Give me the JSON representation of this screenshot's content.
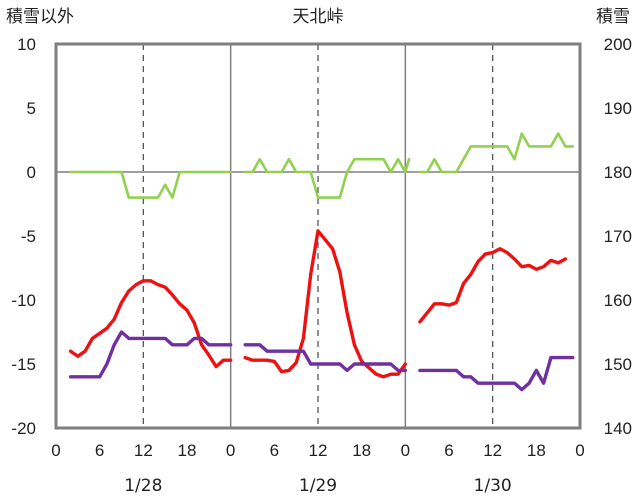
{
  "chart_data": {
    "type": "line",
    "title": "天北峠",
    "ylabel_left": "積雪以外",
    "ylabel_right": "積雪",
    "y_left": {
      "min": -20,
      "max": 10,
      "ticks": [
        10,
        5,
        0,
        -5,
        -10,
        -15,
        -20
      ]
    },
    "y_right": {
      "min": 140,
      "max": 200,
      "ticks": [
        200,
        190,
        180,
        170,
        160,
        150,
        140
      ]
    },
    "x": {
      "min": 0,
      "max": 72,
      "tick_hours": [
        0,
        6,
        12,
        18,
        24,
        30,
        36,
        42,
        48,
        54,
        60,
        66,
        72
      ],
      "tick_labels": [
        "0",
        "6",
        "12",
        "18",
        "0",
        "6",
        "12",
        "18",
        "0",
        "6",
        "12",
        "18",
        "0"
      ]
    },
    "dates": [
      "1/28",
      "1/29",
      "1/30"
    ],
    "grid": {
      "vertical_dashed_hours": [
        12,
        36,
        60
      ],
      "vertical_solid_hours": [
        24,
        48
      ],
      "horizontal_solid_values": [
        0
      ]
    },
    "series": [
      {
        "color": "#ee1111",
        "segments": [
          [
            [
              2,
              -14
            ],
            [
              3,
              -14.4
            ],
            [
              4,
              -14
            ],
            [
              5,
              -13
            ],
            [
              6,
              -12.6
            ],
            [
              7,
              -12.2
            ],
            [
              8,
              -11.5
            ],
            [
              9,
              -10.2
            ],
            [
              10,
              -9.3
            ],
            [
              11,
              -8.8
            ],
            [
              12,
              -8.5
            ],
            [
              13,
              -8.5
            ],
            [
              14,
              -8.8
            ],
            [
              15,
              -9
            ],
            [
              16,
              -9.6
            ],
            [
              17,
              -10.3
            ],
            [
              18,
              -10.8
            ],
            [
              19,
              -11.8
            ],
            [
              20,
              -13.5
            ],
            [
              21,
              -14.3
            ],
            [
              22,
              -15.2
            ],
            [
              23,
              -14.7
            ],
            [
              24,
              -14.7
            ]
          ],
          [
            [
              26,
              -14.5
            ],
            [
              27,
              -14.7
            ],
            [
              28,
              -14.7
            ],
            [
              29,
              -14.7
            ],
            [
              30,
              -14.8
            ],
            [
              31,
              -15.6
            ],
            [
              32,
              -15.5
            ],
            [
              33,
              -14.9
            ],
            [
              34,
              -13
            ],
            [
              35,
              -8
            ],
            [
              36,
              -4.6
            ],
            [
              37,
              -5.3
            ],
            [
              38,
              -6
            ],
            [
              39,
              -7.8
            ],
            [
              40,
              -11
            ],
            [
              41,
              -13.5
            ],
            [
              42,
              -14.8
            ],
            [
              43,
              -15.3
            ],
            [
              44,
              -15.8
            ],
            [
              45,
              -16
            ],
            [
              46,
              -15.8
            ],
            [
              47,
              -15.8
            ],
            [
              48,
              -15
            ]
          ],
          [
            [
              50,
              -11.7
            ],
            [
              51,
              -11
            ],
            [
              52,
              -10.3
            ],
            [
              53,
              -10.3
            ],
            [
              54,
              -10.4
            ],
            [
              55,
              -10.2
            ],
            [
              56,
              -8.7
            ],
            [
              57,
              -8
            ],
            [
              58,
              -7
            ],
            [
              59,
              -6.4
            ],
            [
              60,
              -6.3
            ],
            [
              61,
              -6
            ],
            [
              62,
              -6.3
            ],
            [
              63,
              -6.8
            ],
            [
              64,
              -7.4
            ],
            [
              65,
              -7.3
            ],
            [
              66,
              -7.6
            ],
            [
              67,
              -7.4
            ],
            [
              68,
              -6.9
            ],
            [
              69,
              -7.1
            ],
            [
              70,
              -6.8
            ]
          ]
        ]
      },
      {
        "color": "#7030a0",
        "segments": [
          [
            [
              2,
              -16
            ],
            [
              3,
              -16
            ],
            [
              4,
              -16
            ],
            [
              5,
              -16
            ],
            [
              6,
              -16
            ],
            [
              7,
              -15
            ],
            [
              8,
              -13.5
            ],
            [
              9,
              -12.5
            ],
            [
              10,
              -13
            ],
            [
              11,
              -13
            ],
            [
              12,
              -13
            ],
            [
              13,
              -13
            ],
            [
              14,
              -13
            ],
            [
              15,
              -13
            ],
            [
              16,
              -13.5
            ],
            [
              17,
              -13.5
            ],
            [
              18,
              -13.5
            ],
            [
              19,
              -13
            ],
            [
              20,
              -13
            ],
            [
              21,
              -13.5
            ],
            [
              22,
              -13.5
            ],
            [
              23,
              -13.5
            ],
            [
              24,
              -13.5
            ]
          ],
          [
            [
              26,
              -13.5
            ],
            [
              27,
              -13.5
            ],
            [
              28,
              -13.5
            ],
            [
              29,
              -14
            ],
            [
              30,
              -14
            ],
            [
              31,
              -14
            ],
            [
              32,
              -14
            ],
            [
              33,
              -14
            ],
            [
              34,
              -14
            ],
            [
              35,
              -15
            ],
            [
              36,
              -15
            ],
            [
              37,
              -15
            ],
            [
              38,
              -15
            ],
            [
              39,
              -15
            ],
            [
              40,
              -15.5
            ],
            [
              41,
              -15
            ],
            [
              42,
              -15
            ],
            [
              43,
              -15
            ],
            [
              44,
              -15
            ],
            [
              45,
              -15
            ],
            [
              46,
              -15
            ],
            [
              47,
              -15.5
            ],
            [
              48,
              -15.5
            ]
          ],
          [
            [
              50,
              -15.5
            ],
            [
              51,
              -15.5
            ],
            [
              52,
              -15.5
            ],
            [
              53,
              -15.5
            ],
            [
              54,
              -15.5
            ],
            [
              55,
              -15.5
            ],
            [
              56,
              -16
            ],
            [
              57,
              -16
            ],
            [
              58,
              -16.5
            ],
            [
              59,
              -16.5
            ],
            [
              60,
              -16.5
            ],
            [
              61,
              -16.5
            ],
            [
              62,
              -16.5
            ],
            [
              63,
              -16.5
            ],
            [
              64,
              -17
            ],
            [
              65,
              -16.5
            ],
            [
              66,
              -15.5
            ],
            [
              67,
              -16.5
            ],
            [
              68,
              -14.5
            ],
            [
              69,
              -14.5
            ],
            [
              70,
              -14.5
            ],
            [
              71,
              -14.5
            ]
          ]
        ]
      },
      {
        "color": "#92d050",
        "segments": [
          [
            [
              2,
              0
            ],
            [
              3,
              0
            ],
            [
              4,
              0
            ],
            [
              5,
              0
            ],
            [
              6,
              0
            ],
            [
              7,
              0
            ],
            [
              8,
              0
            ],
            [
              9,
              0
            ],
            [
              10,
              -2
            ],
            [
              11,
              -2
            ],
            [
              12,
              -2
            ],
            [
              13,
              -2
            ],
            [
              14,
              -2
            ],
            [
              15,
              -1
            ],
            [
              16,
              -2
            ],
            [
              17,
              0
            ],
            [
              18,
              0
            ],
            [
              19,
              0
            ],
            [
              20,
              0
            ],
            [
              21,
              0
            ],
            [
              22,
              0
            ],
            [
              23,
              0
            ],
            [
              24,
              0
            ]
          ],
          [
            [
              26,
              0
            ],
            [
              27,
              0
            ],
            [
              28,
              1
            ],
            [
              29,
              0
            ],
            [
              30,
              0
            ],
            [
              31,
              0
            ],
            [
              32,
              1
            ],
            [
              33,
              0
            ],
            [
              34,
              0
            ],
            [
              35,
              0
            ],
            [
              36,
              -2
            ],
            [
              37,
              -2
            ],
            [
              38,
              -2
            ],
            [
              39,
              -2
            ],
            [
              40,
              0
            ],
            [
              41,
              1
            ],
            [
              42,
              1
            ],
            [
              43,
              1
            ],
            [
              44,
              1
            ],
            [
              45,
              1
            ],
            [
              46,
              0
            ],
            [
              47,
              1
            ],
            [
              48,
              0
            ],
            [
              48.5,
              1
            ]
          ],
          [
            [
              50,
              0
            ],
            [
              51,
              0
            ],
            [
              52,
              1
            ],
            [
              53,
              0
            ],
            [
              54,
              0
            ],
            [
              55,
              0
            ],
            [
              56,
              1
            ],
            [
              57,
              2
            ],
            [
              58,
              2
            ],
            [
              59,
              2
            ],
            [
              60,
              2
            ],
            [
              61,
              2
            ],
            [
              62,
              2
            ],
            [
              63,
              1
            ],
            [
              64,
              3
            ],
            [
              65,
              2
            ],
            [
              66,
              2
            ],
            [
              67,
              2
            ],
            [
              68,
              2
            ],
            [
              69,
              3
            ],
            [
              70,
              2
            ],
            [
              71,
              2
            ]
          ]
        ]
      }
    ]
  }
}
